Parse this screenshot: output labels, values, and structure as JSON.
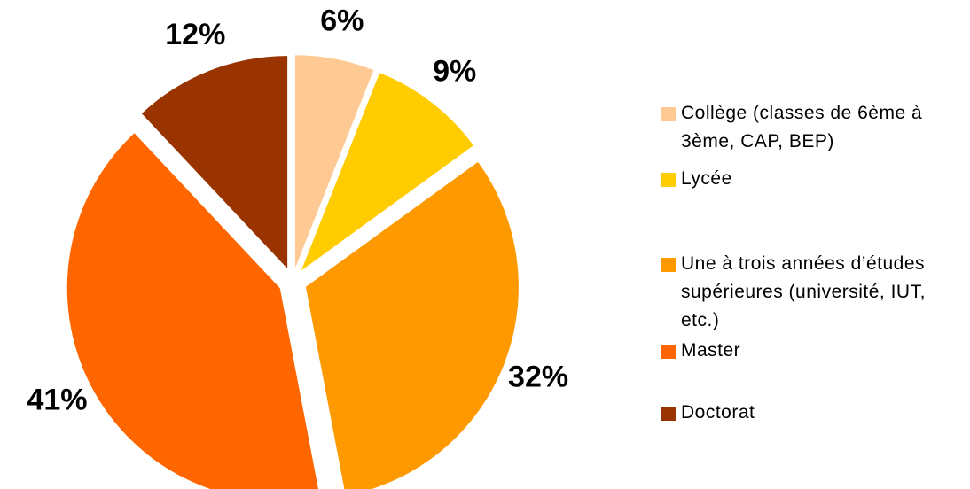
{
  "chart_data": {
    "type": "pie",
    "categories": [
      "Collège (classes de 6ème à 3ème, CAP, BEP)",
      "Lycée",
      "Une à trois années d’études supérieures (université, IUT, etc.)",
      "Master",
      "Doctorat"
    ],
    "values": [
      6,
      9,
      32,
      41,
      12
    ],
    "value_labels": [
      "6%",
      "9%",
      "32%",
      "41%",
      "12%"
    ],
    "colors": [
      "#FFC993",
      "#FFCC00",
      "#FF9900",
      "#FF6600",
      "#993300"
    ],
    "legend": "right"
  }
}
